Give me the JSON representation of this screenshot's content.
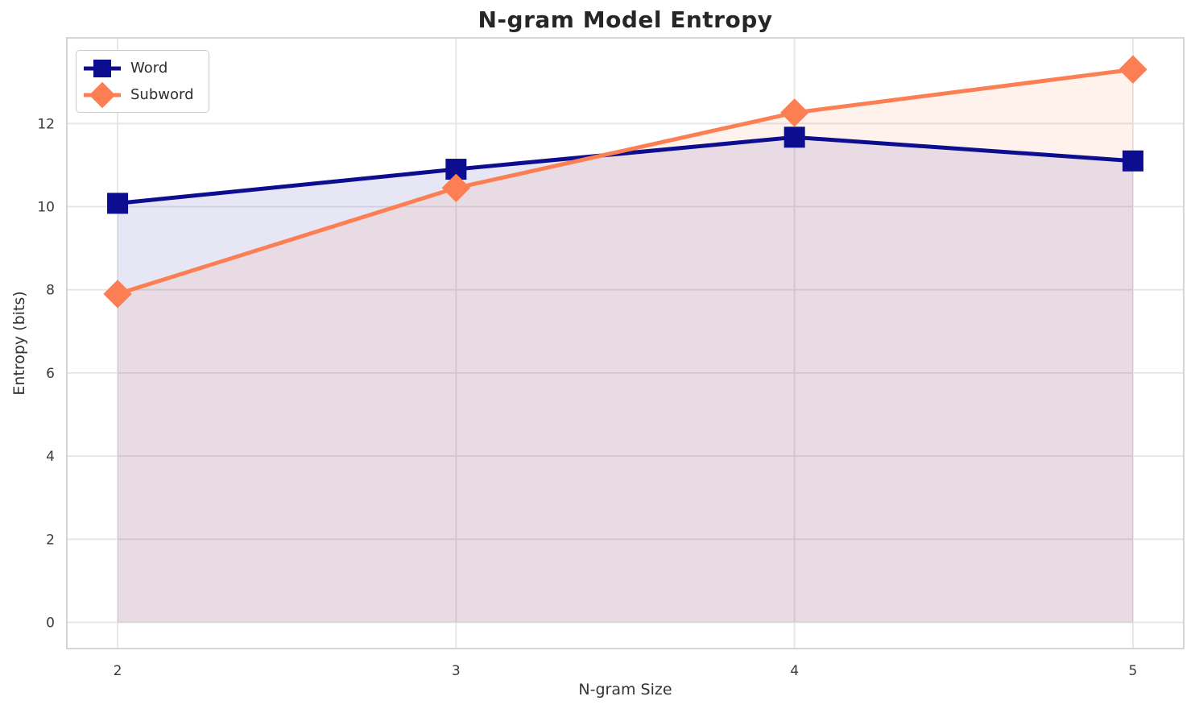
{
  "chart_data": {
    "type": "line",
    "title": "N-gram Model Entropy",
    "xlabel": "N-gram Size",
    "ylabel": "Entropy (bits)",
    "x": [
      2,
      3,
      4,
      5
    ],
    "series": [
      {
        "name": "Word",
        "values": [
          10.08,
          10.9,
          11.67,
          11.1
        ],
        "color": "#0d0d90",
        "marker": "square",
        "fill_opacity": 0.1
      },
      {
        "name": "Subword",
        "values": [
          7.9,
          10.45,
          12.26,
          13.3
        ],
        "color": "#fc7e53",
        "marker": "diamond",
        "fill_opacity": 0.1
      }
    ],
    "xticks": [
      2,
      3,
      4,
      5
    ],
    "yticks": [
      0,
      2,
      4,
      6,
      8,
      10,
      12
    ],
    "xlim": [
      1.85,
      5.15
    ],
    "ylim": [
      -0.63,
      14.06
    ],
    "fill_baseline": 0,
    "grid": true,
    "legend_position": "upper-left",
    "colors": {
      "grid": "#e5e5e5",
      "spine": "#cbcbcb",
      "tick_text": "#3b3b3b",
      "background": "#ffffff"
    }
  }
}
